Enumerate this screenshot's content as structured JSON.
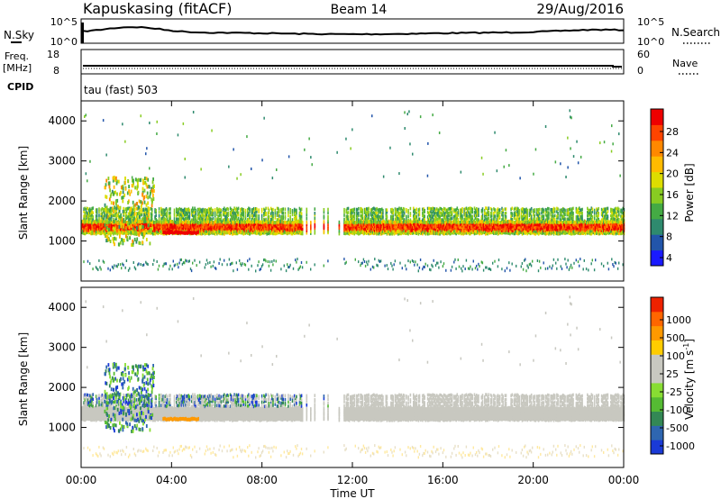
{
  "header": {
    "station": "Kapuskasing (fitACF)",
    "beam": "Beam 14",
    "date": "29/Aug/2016"
  },
  "params": {
    "nsky_label": "N.Sky",
    "nsky_ticks": [
      "10^5",
      "10^0"
    ],
    "nsearch_label": "N.Search",
    "nsearch_ticks": [
      "10^5",
      "10^0"
    ],
    "freq_label": "Freq.",
    "freq_unit": "[MHz]",
    "freq_ticks": [
      "18",
      "8"
    ],
    "nave_label": "Nave",
    "nave_ticks": [
      "60",
      "0"
    ],
    "cpid_label": "CPID",
    "cpid_value": "tau (fast) 503"
  },
  "chart_data": [
    {
      "type": "heatmap",
      "name": "power",
      "ylabel": "Slant Range [km]",
      "ylim": [
        0,
        4500
      ],
      "yticks": [
        "4000",
        "3000",
        "2000",
        "1000"
      ],
      "colorbar": {
        "label": "Power [dB]",
        "ticks": [
          "28",
          "24",
          "20",
          "16",
          "12",
          "8",
          "4"
        ],
        "colors": [
          "#1a1aff",
          "#2255aa",
          "#2e8a6e",
          "#44aa44",
          "#88cc22",
          "#dddd00",
          "#ffbb00",
          "#ff8800",
          "#ff4400",
          "#ee0000"
        ]
      }
    },
    {
      "type": "heatmap",
      "name": "velocity",
      "ylabel": "Slant Range [km]",
      "xlabel": "Time UT",
      "ylim": [
        0,
        4500
      ],
      "yticks": [
        "4000",
        "3000",
        "2000",
        "1000"
      ],
      "xticks": [
        "00:00",
        "04:00",
        "08:00",
        "12:00",
        "16:00",
        "20:00",
        "00:00"
      ],
      "colorbar": {
        "label": "Velocity [m s",
        "superscript": "-1",
        "closing": "]",
        "ticks": [
          "1000",
          "500",
          "100",
          "25",
          "-25",
          "-100",
          "-500",
          "-1000"
        ],
        "colors": [
          "#1a3ad6",
          "#2e66b0",
          "#338855",
          "#55bb33",
          "#88dd33",
          "#c8c8c0",
          "#c8c8c0",
          "#ffcc00",
          "#ff9900",
          "#ff6600",
          "#ee2200"
        ]
      }
    }
  ]
}
